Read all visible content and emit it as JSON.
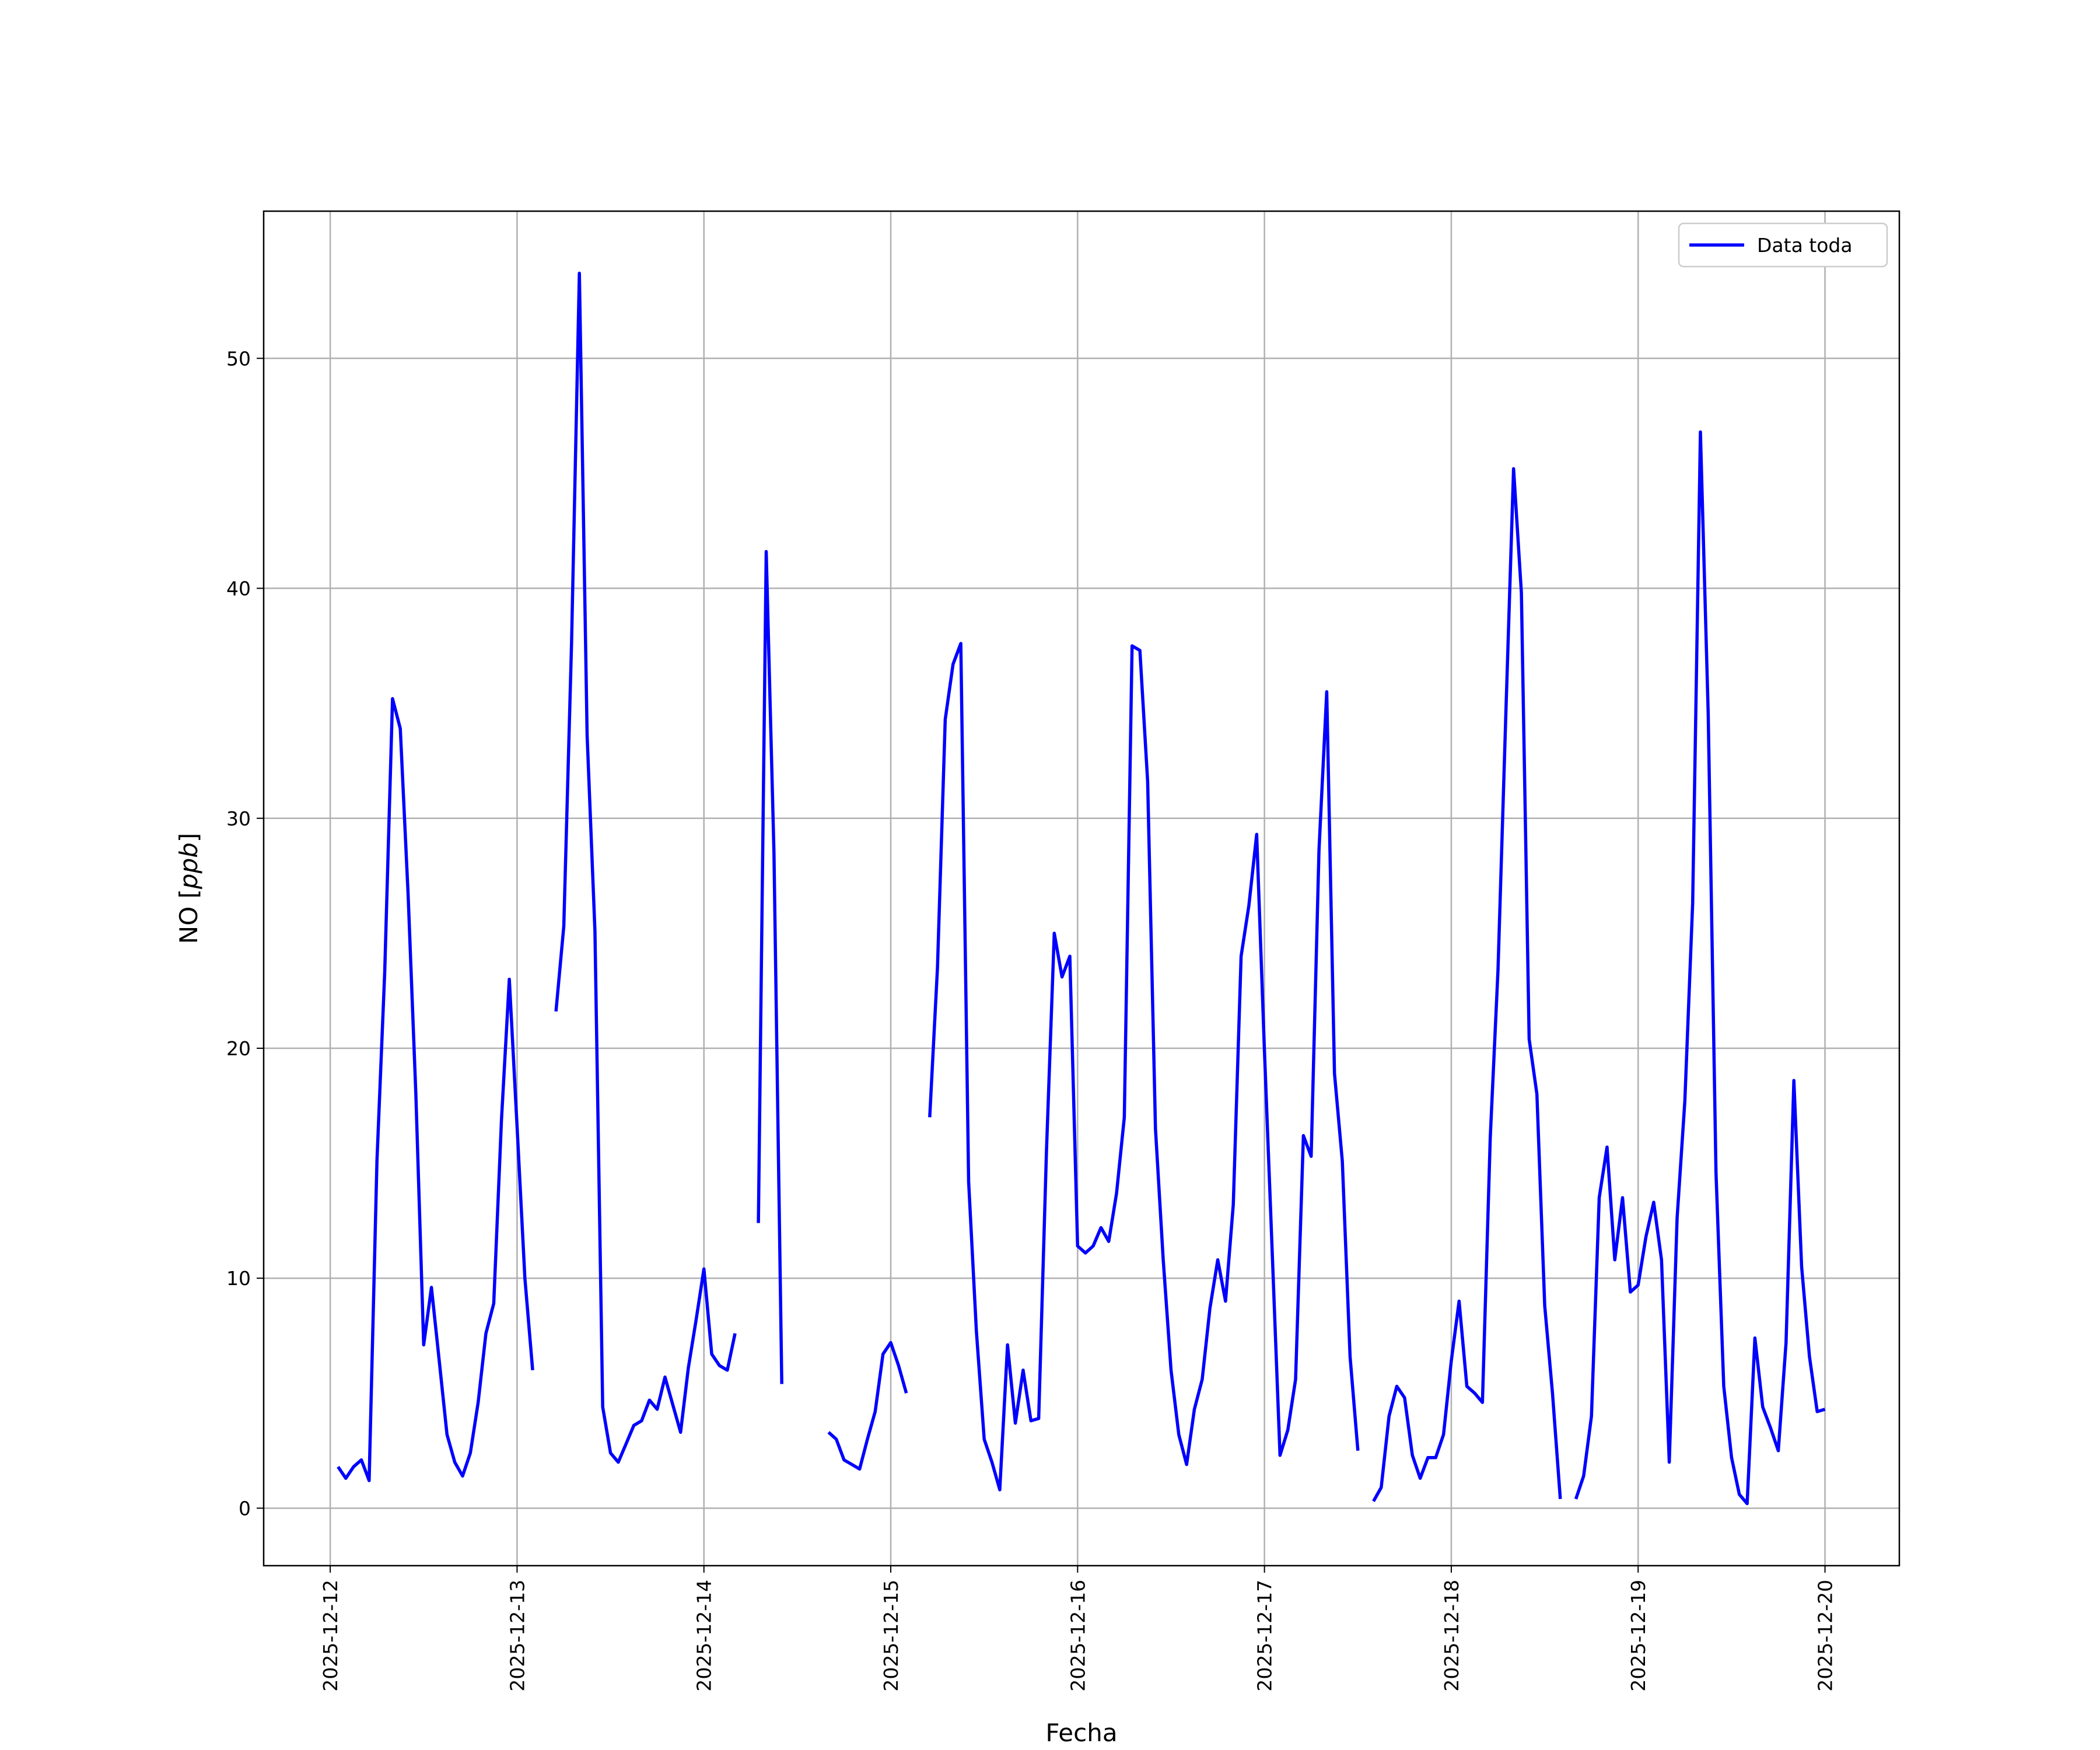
{
  "chart_data": {
    "type": "line",
    "title": "",
    "xlabel": "Fecha",
    "ylabel": "NO [ppb]",
    "x_ticks": [
      "2025-12-12",
      "2025-12-13",
      "2025-12-14",
      "2025-12-15",
      "2025-12-16",
      "2025-12-17",
      "2025-12-18",
      "2025-12-19",
      "2025-12-20"
    ],
    "y_ticks": [
      0,
      10,
      20,
      30,
      40,
      50
    ],
    "ylim": [
      -2.5,
      56.4
    ],
    "grid": true,
    "legend": "top-right",
    "series": [
      {
        "name": "Data toda",
        "color": "#0000ff",
        "points": [
          [
            "2025-12-12 01:00",
            1.8
          ],
          [
            "2025-12-12 02:00",
            1.3
          ],
          [
            "2025-12-12 03:00",
            1.8
          ],
          [
            "2025-12-12 04:00",
            2.1
          ],
          [
            "2025-12-12 05:00",
            1.2
          ],
          [
            "2025-12-12 06:00",
            15.1
          ],
          [
            "2025-12-12 07:00",
            23.3
          ],
          [
            "2025-12-12 08:00",
            35.2
          ],
          [
            "2025-12-12 09:00",
            33.9
          ],
          [
            "2025-12-12 10:00",
            26.7
          ],
          [
            "2025-12-12 11:00",
            18.0
          ],
          [
            "2025-12-12 12:00",
            7.1
          ],
          [
            "2025-12-12 13:00",
            9.6
          ],
          [
            "2025-12-12 14:00",
            6.4
          ],
          [
            "2025-12-12 15:00",
            3.2
          ],
          [
            "2025-12-12 16:00",
            2.0
          ],
          [
            "2025-12-12 17:00",
            1.4
          ],
          [
            "2025-12-12 18:00",
            2.4
          ],
          [
            "2025-12-12 19:00",
            4.6
          ],
          [
            "2025-12-12 20:00",
            7.6
          ],
          [
            "2025-12-12 21:00",
            8.9
          ],
          [
            "2025-12-12 22:00",
            16.9
          ],
          [
            "2025-12-12 23:00",
            23.0
          ],
          [
            "2025-12-13 00:00",
            16.6
          ],
          [
            "2025-12-13 01:00",
            10.0
          ],
          [
            "2025-12-13 02:00",
            6.0
          ],
          [
            "2025-12-13 05:00",
            21.6
          ],
          [
            "2025-12-13 06:00",
            25.3
          ],
          [
            "2025-12-13 07:00",
            37.6
          ],
          [
            "2025-12-13 08:00",
            53.7
          ],
          [
            "2025-12-13 09:00",
            33.6
          ],
          [
            "2025-12-13 10:00",
            25.1
          ],
          [
            "2025-12-13 11:00",
            4.4
          ],
          [
            "2025-12-13 12:00",
            2.4
          ],
          [
            "2025-12-13 13:00",
            2.0
          ],
          [
            "2025-12-13 14:00",
            2.8
          ],
          [
            "2025-12-13 15:00",
            3.6
          ],
          [
            "2025-12-13 16:00",
            3.8
          ],
          [
            "2025-12-13 17:00",
            4.7
          ],
          [
            "2025-12-13 18:00",
            4.3
          ],
          [
            "2025-12-13 19:00",
            5.7
          ],
          [
            "2025-12-13 20:00",
            4.5
          ],
          [
            "2025-12-13 21:00",
            3.3
          ],
          [
            "2025-12-13 22:00",
            6.1
          ],
          [
            "2025-12-13 23:00",
            8.2
          ],
          [
            "2025-12-14 00:00",
            10.4
          ],
          [
            "2025-12-14 01:00",
            6.7
          ],
          [
            "2025-12-14 02:00",
            6.2
          ],
          [
            "2025-12-14 03:00",
            6.0
          ],
          [
            "2025-12-14 04:00",
            7.6
          ],
          [
            "2025-12-14 07:00",
            12.4
          ],
          [
            "2025-12-14 08:00",
            41.6
          ],
          [
            "2025-12-14 09:00",
            28.5
          ],
          [
            "2025-12-14 10:00",
            5.4
          ],
          [
            "2025-12-14 16:00",
            3.3
          ],
          [
            "2025-12-14 17:00",
            3.0
          ],
          [
            "2025-12-14 18:00",
            2.1
          ],
          [
            "2025-12-14 19:00",
            1.9
          ],
          [
            "2025-12-14 20:00",
            1.7
          ],
          [
            "2025-12-14 21:00",
            3.0
          ],
          [
            "2025-12-14 22:00",
            4.2
          ],
          [
            "2025-12-14 23:00",
            6.7
          ],
          [
            "2025-12-15 00:00",
            7.2
          ],
          [
            "2025-12-15 01:00",
            6.2
          ],
          [
            "2025-12-15 02:00",
            5.0
          ],
          [
            "2025-12-15 05:00",
            17.0
          ],
          [
            "2025-12-15 06:00",
            23.5
          ],
          [
            "2025-12-15 07:00",
            34.3
          ],
          [
            "2025-12-15 08:00",
            36.7
          ],
          [
            "2025-12-15 09:00",
            37.6
          ],
          [
            "2025-12-15 10:00",
            14.2
          ],
          [
            "2025-12-15 11:00",
            7.7
          ],
          [
            "2025-12-15 12:00",
            3.0
          ],
          [
            "2025-12-15 13:00",
            2.0
          ],
          [
            "2025-12-15 14:00",
            0.8
          ],
          [
            "2025-12-15 15:00",
            7.1
          ],
          [
            "2025-12-15 16:00",
            3.7
          ],
          [
            "2025-12-15 17:00",
            6.0
          ],
          [
            "2025-12-15 18:00",
            3.8
          ],
          [
            "2025-12-15 19:00",
            3.9
          ],
          [
            "2025-12-15 20:00",
            15.5
          ],
          [
            "2025-12-15 21:00",
            25.0
          ],
          [
            "2025-12-15 22:00",
            23.1
          ],
          [
            "2025-12-15 23:00",
            24.0
          ],
          [
            "2025-12-16 00:00",
            11.4
          ],
          [
            "2025-12-16 01:00",
            11.1
          ],
          [
            "2025-12-16 02:00",
            11.4
          ],
          [
            "2025-12-16 03:00",
            12.2
          ],
          [
            "2025-12-16 04:00",
            11.6
          ],
          [
            "2025-12-16 05:00",
            13.7
          ],
          [
            "2025-12-16 06:00",
            17.0
          ],
          [
            "2025-12-16 07:00",
            37.5
          ],
          [
            "2025-12-16 08:00",
            37.3
          ],
          [
            "2025-12-16 09:00",
            31.6
          ],
          [
            "2025-12-16 10:00",
            16.5
          ],
          [
            "2025-12-16 11:00",
            10.8
          ],
          [
            "2025-12-16 12:00",
            6.0
          ],
          [
            "2025-12-16 13:00",
            3.2
          ],
          [
            "2025-12-16 14:00",
            1.9
          ],
          [
            "2025-12-16 15:00",
            4.3
          ],
          [
            "2025-12-16 16:00",
            5.6
          ],
          [
            "2025-12-16 17:00",
            8.7
          ],
          [
            "2025-12-16 18:00",
            10.8
          ],
          [
            "2025-12-16 19:00",
            9.0
          ],
          [
            "2025-12-16 20:00",
            13.2
          ],
          [
            "2025-12-16 21:00",
            24.0
          ],
          [
            "2025-12-16 22:00",
            26.2
          ],
          [
            "2025-12-16 23:00",
            29.3
          ],
          [
            "2025-12-17 00:00",
            19.9
          ],
          [
            "2025-12-17 01:00",
            11.1
          ],
          [
            "2025-12-17 02:00",
            2.3
          ],
          [
            "2025-12-17 03:00",
            3.4
          ],
          [
            "2025-12-17 04:00",
            5.6
          ],
          [
            "2025-12-17 05:00",
            16.2
          ],
          [
            "2025-12-17 06:00",
            15.3
          ],
          [
            "2025-12-17 07:00",
            28.6
          ],
          [
            "2025-12-17 08:00",
            35.5
          ],
          [
            "2025-12-17 09:00",
            18.9
          ],
          [
            "2025-12-17 10:00",
            15.1
          ],
          [
            "2025-12-17 11:00",
            6.6
          ],
          [
            "2025-12-17 12:00",
            2.5
          ],
          [
            "2025-12-17 14:00",
            0.3
          ],
          [
            "2025-12-17 15:00",
            0.9
          ],
          [
            "2025-12-17 16:00",
            4.0
          ],
          [
            "2025-12-17 17:00",
            5.3
          ],
          [
            "2025-12-17 18:00",
            4.8
          ],
          [
            "2025-12-17 19:00",
            2.3
          ],
          [
            "2025-12-17 20:00",
            1.3
          ],
          [
            "2025-12-17 21:00",
            2.2
          ],
          [
            "2025-12-17 22:00",
            2.2
          ],
          [
            "2025-12-17 23:00",
            3.2
          ],
          [
            "2025-12-18 00:00",
            6.4
          ],
          [
            "2025-12-18 01:00",
            9.0
          ],
          [
            "2025-12-18 02:00",
            5.3
          ],
          [
            "2025-12-18 03:00",
            5.0
          ],
          [
            "2025-12-18 04:00",
            4.6
          ],
          [
            "2025-12-18 05:00",
            16.1
          ],
          [
            "2025-12-18 06:00",
            23.4
          ],
          [
            "2025-12-18 07:00",
            34.5
          ],
          [
            "2025-12-18 08:00",
            45.2
          ],
          [
            "2025-12-18 09:00",
            39.8
          ],
          [
            "2025-12-18 10:00",
            20.4
          ],
          [
            "2025-12-18 11:00",
            18.0
          ],
          [
            "2025-12-18 12:00",
            8.8
          ],
          [
            "2025-12-18 13:00",
            5.0
          ],
          [
            "2025-12-18 14:00",
            0.4
          ],
          [
            "2025-12-18 16:00",
            0.4
          ],
          [
            "2025-12-18 17:00",
            1.4
          ],
          [
            "2025-12-18 18:00",
            4.0
          ],
          [
            "2025-12-18 19:00",
            13.5
          ],
          [
            "2025-12-18 20:00",
            15.7
          ],
          [
            "2025-12-18 21:00",
            10.8
          ],
          [
            "2025-12-18 22:00",
            13.5
          ],
          [
            "2025-12-18 23:00",
            9.4
          ],
          [
            "2025-12-19 00:00",
            9.7
          ],
          [
            "2025-12-19 01:00",
            11.8
          ],
          [
            "2025-12-19 02:00",
            13.3
          ],
          [
            "2025-12-19 03:00",
            10.8
          ],
          [
            "2025-12-19 04:00",
            2.0
          ],
          [
            "2025-12-19 05:00",
            12.6
          ],
          [
            "2025-12-19 06:00",
            17.7
          ],
          [
            "2025-12-19 07:00",
            26.3
          ],
          [
            "2025-12-19 08:00",
            46.8
          ],
          [
            "2025-12-19 09:00",
            34.5
          ],
          [
            "2025-12-19 10:00",
            14.6
          ],
          [
            "2025-12-19 11:00",
            5.3
          ],
          [
            "2025-12-19 12:00",
            2.2
          ],
          [
            "2025-12-19 13:00",
            0.6
          ],
          [
            "2025-12-19 14:00",
            0.2
          ],
          [
            "2025-12-19 15:00",
            7.4
          ],
          [
            "2025-12-19 16:00",
            4.4
          ],
          [
            "2025-12-19 17:00",
            3.5
          ],
          [
            "2025-12-19 18:00",
            2.5
          ],
          [
            "2025-12-19 19:00",
            7.2
          ],
          [
            "2025-12-19 20:00",
            18.6
          ],
          [
            "2025-12-19 21:00",
            10.5
          ],
          [
            "2025-12-19 22:00",
            6.6
          ],
          [
            "2025-12-19 23:00",
            4.2
          ],
          [
            "2025-12-20 00:00",
            4.3
          ]
        ]
      }
    ]
  }
}
